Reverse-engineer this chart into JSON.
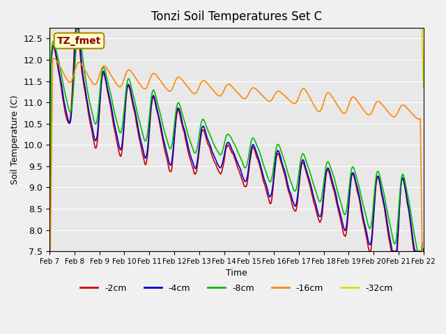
{
  "title": "Tonzi Soil Temperatures Set C",
  "xlabel": "Time",
  "ylabel": "Soil Temperature (C)",
  "ylim": [
    7.5,
    12.75
  ],
  "legend_labels": [
    "-2cm",
    "-4cm",
    "-8cm",
    "-16cm",
    "-32cm"
  ],
  "legend_colors": [
    "#cc0000",
    "#0000cc",
    "#00bb00",
    "#ff8800",
    "#dddd00"
  ],
  "line_widths": [
    1.2,
    1.2,
    1.2,
    1.2,
    1.5
  ],
  "annotation_text": "TZ_fmet",
  "annotation_color": "#880000",
  "annotation_bg": "#ffffcc",
  "x_tick_labels": [
    "Feb 7",
    "Feb 8",
    "Feb 9",
    "Feb 10",
    "Feb 11",
    "Feb 12",
    "Feb 13",
    "Feb 14",
    "Feb 15",
    "Feb 16",
    "Feb 17",
    "Feb 18",
    "Feb 19",
    "Feb 20",
    "Feb 21",
    "Feb 22"
  ],
  "num_points": 1440
}
